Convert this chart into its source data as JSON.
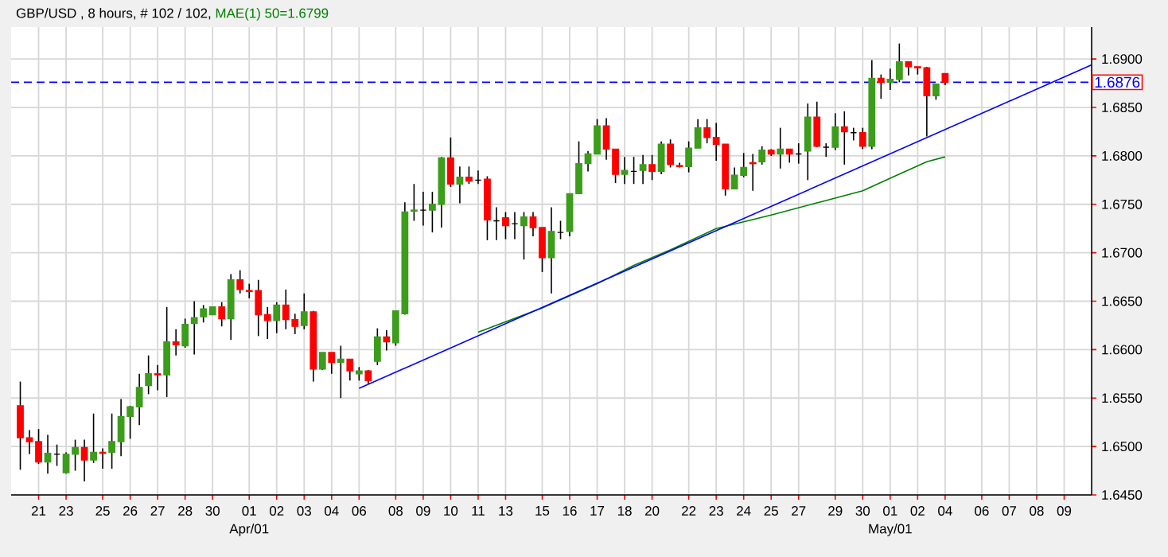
{
  "chart_data": {
    "type": "candlestick",
    "title": "GBP/USD , 8 hours, # 102 / 102,",
    "categories": [
      null,
      null,
      "21",
      null,
      null,
      "23",
      null,
      null,
      null,
      "25",
      null,
      null,
      "26",
      null,
      null,
      "27",
      null,
      null,
      "28",
      null,
      null,
      "30",
      null,
      null,
      null,
      "01",
      null,
      null,
      "02",
      null,
      null,
      "03",
      null,
      null,
      "04",
      null,
      null,
      "06",
      null,
      null,
      null,
      "08",
      null,
      null,
      "09",
      null,
      null,
      "10",
      null,
      null,
      "11",
      null,
      null,
      "13",
      null,
      null,
      null,
      "15",
      null,
      null,
      "16",
      null,
      null,
      "17",
      null,
      null,
      "18",
      null,
      null,
      "20",
      null,
      null,
      null,
      "22",
      null,
      null,
      "23",
      null,
      null,
      "24",
      null,
      null,
      "25",
      null,
      null,
      "27",
      null,
      null,
      null,
      "29",
      null,
      null,
      "30",
      null,
      null,
      "01",
      null,
      null,
      "02",
      null,
      null,
      "04",
      null,
      null,
      null,
      "06",
      null,
      null,
      "07",
      null,
      null,
      "08",
      null,
      null,
      "09",
      null,
      null,
      null
    ],
    "ohlc": [
      [
        1.6542,
        1.6567,
        1.6476,
        1.6509
      ],
      [
        1.6509,
        1.6517,
        1.6492,
        1.6505
      ],
      [
        1.6505,
        1.6518,
        1.6482,
        1.6484
      ],
      [
        1.6484,
        1.6512,
        1.6472,
        1.6493
      ],
      [
        1.6492,
        1.6502,
        1.648,
        1.6492
      ],
      [
        1.6473,
        1.6494,
        1.6472,
        1.6492
      ],
      [
        1.6492,
        1.6507,
        1.6475,
        1.6499
      ],
      [
        1.6499,
        1.6507,
        1.6464,
        1.6486
      ],
      [
        1.6486,
        1.6534,
        1.6483,
        1.6494
      ],
      [
        1.6494,
        1.6498,
        1.6477,
        1.6493
      ],
      [
        1.6494,
        1.6534,
        1.6477,
        1.6505
      ],
      [
        1.6505,
        1.6549,
        1.649,
        1.6531
      ],
      [
        1.6531,
        1.6542,
        1.6508,
        1.6541
      ],
      [
        1.6541,
        1.6575,
        1.6522,
        1.6561
      ],
      [
        1.6563,
        1.6594,
        1.6554,
        1.6575
      ],
      [
        1.6575,
        1.6584,
        1.6558,
        1.6574
      ],
      [
        1.6574,
        1.6644,
        1.6551,
        1.6608
      ],
      [
        1.6608,
        1.6621,
        1.6594,
        1.6605
      ],
      [
        1.6604,
        1.6632,
        1.6602,
        1.6626
      ],
      [
        1.6627,
        1.665,
        1.6595,
        1.6633
      ],
      [
        1.6634,
        1.6646,
        1.6628,
        1.6642
      ],
      [
        1.6636,
        1.6644,
        1.6636,
        1.6644
      ],
      [
        1.6644,
        1.6649,
        1.6624,
        1.6632
      ],
      [
        1.6632,
        1.6678,
        1.661,
        1.6672
      ],
      [
        1.6672,
        1.6682,
        1.6658,
        1.6662
      ],
      [
        1.6661,
        1.6668,
        1.6653,
        1.666
      ],
      [
        1.6661,
        1.6672,
        1.6614,
        1.6636
      ],
      [
        1.6636,
        1.6644,
        1.6611,
        1.663
      ],
      [
        1.663,
        1.6649,
        1.6617,
        1.6646
      ],
      [
        1.6646,
        1.6662,
        1.6621,
        1.6631
      ],
      [
        1.6631,
        1.6637,
        1.6616,
        1.6624
      ],
      [
        1.6625,
        1.6658,
        1.6621,
        1.6639
      ],
      [
        1.6639,
        1.664,
        1.6567,
        1.658
      ],
      [
        1.658,
        1.6597,
        1.6579,
        1.6597
      ],
      [
        1.6597,
        1.6597,
        1.6575,
        1.6587
      ],
      [
        1.6587,
        1.6604,
        1.655,
        1.659
      ],
      [
        1.659,
        1.659,
        1.6568,
        1.6578
      ],
      [
        1.6575,
        1.6582,
        1.6568,
        1.6578
      ],
      [
        1.6578,
        1.6579,
        1.6565,
        1.6568
      ],
      [
        1.6588,
        1.6622,
        1.6584,
        1.6613
      ],
      [
        1.6613,
        1.662,
        1.6599,
        1.6608
      ],
      [
        1.6607,
        1.664,
        1.6604,
        1.664
      ],
      [
        1.6637,
        1.6752,
        1.6636,
        1.6742
      ],
      [
        1.6743,
        1.6771,
        1.6733,
        1.6744
      ],
      [
        1.6744,
        1.6763,
        1.6728,
        1.6744
      ],
      [
        1.6744,
        1.6763,
        1.6721,
        1.675
      ],
      [
        1.675,
        1.6799,
        1.6726,
        1.6798
      ],
      [
        1.6798,
        1.6819,
        1.6768,
        1.6771
      ],
      [
        1.6771,
        1.6789,
        1.6751,
        1.6778
      ],
      [
        1.6778,
        1.6789,
        1.6771,
        1.6774
      ],
      [
        1.6775,
        1.6785,
        1.6771,
        1.6775
      ],
      [
        1.6776,
        1.6779,
        1.6713,
        1.6734
      ],
      [
        1.6733,
        1.6747,
        1.6713,
        1.6733
      ],
      [
        1.6736,
        1.6742,
        1.6714,
        1.6728
      ],
      [
        1.673,
        1.6742,
        1.6714,
        1.673
      ],
      [
        1.6728,
        1.6742,
        1.6693,
        1.6737
      ],
      [
        1.6737,
        1.6742,
        1.6717,
        1.6726
      ],
      [
        1.6726,
        1.6726,
        1.668,
        1.6695
      ],
      [
        1.6695,
        1.6747,
        1.6658,
        1.6722
      ],
      [
        1.6721,
        1.6733,
        1.6714,
        1.6721
      ],
      [
        1.6722,
        1.6761,
        1.6717,
        1.6761
      ],
      [
        1.6761,
        1.6815,
        1.6761,
        1.6792
      ],
      [
        1.6792,
        1.6805,
        1.6784,
        1.6802
      ],
      [
        1.6802,
        1.6838,
        1.6802,
        1.6831
      ],
      [
        1.6831,
        1.6839,
        1.6796,
        1.6807
      ],
      [
        1.6807,
        1.6807,
        1.6772,
        1.6781
      ],
      [
        1.6781,
        1.6799,
        1.6771,
        1.6785
      ],
      [
        1.6784,
        1.6799,
        1.6771,
        1.6784
      ],
      [
        1.6785,
        1.6801,
        1.6771,
        1.6791
      ],
      [
        1.6791,
        1.6801,
        1.6775,
        1.6784
      ],
      [
        1.6784,
        1.6815,
        1.6781,
        1.6812
      ],
      [
        1.6812,
        1.6817,
        1.6788,
        1.6791
      ],
      [
        1.679,
        1.6793,
        1.6788,
        1.6789
      ],
      [
        1.6789,
        1.6815,
        1.6783,
        1.6808
      ],
      [
        1.6808,
        1.6838,
        1.6808,
        1.6829
      ],
      [
        1.6829,
        1.6838,
        1.6813,
        1.6819
      ],
      [
        1.6819,
        1.6834,
        1.6795,
        1.6812
      ],
      [
        1.6812,
        1.6812,
        1.6759,
        1.6766
      ],
      [
        1.6766,
        1.6788,
        1.6766,
        1.678
      ],
      [
        1.678,
        1.6803,
        1.6778,
        1.6788
      ],
      [
        1.6793,
        1.6802,
        1.6764,
        1.6792
      ],
      [
        1.6794,
        1.681,
        1.6791,
        1.6806
      ],
      [
        1.6806,
        1.6807,
        1.68,
        1.6802
      ],
      [
        1.6802,
        1.6829,
        1.6787,
        1.6807
      ],
      [
        1.6807,
        1.6807,
        1.6793,
        1.6802
      ],
      [
        1.6802,
        1.6813,
        1.6792,
        1.6802
      ],
      [
        1.6805,
        1.6854,
        1.6775,
        1.684
      ],
      [
        1.684,
        1.6856,
        1.6809,
        1.681
      ],
      [
        1.6809,
        1.6813,
        1.6799,
        1.6809
      ],
      [
        1.6809,
        1.6844,
        1.6806,
        1.683
      ],
      [
        1.683,
        1.6846,
        1.6791,
        1.6825
      ],
      [
        1.6824,
        1.6829,
        1.6816,
        1.6824
      ],
      [
        1.6824,
        1.6829,
        1.6807,
        1.681
      ],
      [
        1.681,
        1.6899,
        1.6807,
        1.688
      ],
      [
        1.688,
        1.6884,
        1.6859,
        1.6876
      ],
      [
        1.6876,
        1.689,
        1.6868,
        1.6879
      ],
      [
        1.6879,
        1.6916,
        1.6876,
        1.6897
      ],
      [
        1.6897,
        1.6897,
        1.6883,
        1.6892
      ],
      [
        1.6892,
        1.6892,
        1.6884,
        1.6891
      ],
      [
        1.6891,
        1.6892,
        1.682,
        1.6862
      ],
      [
        1.6862,
        1.6874,
        1.6858,
        1.6874
      ],
      [
        1.6885,
        1.6885,
        1.6873,
        1.6876
      ],
      null,
      null,
      null,
      null,
      null,
      null,
      null,
      null,
      null,
      null,
      null,
      null,
      null,
      null,
      null,
      null
    ],
    "colors": [
      "#ff0000",
      "#ff0000",
      "#ff0000",
      "#3c9c1c",
      "#000000",
      "#3c9c1c",
      "#3c9c1c",
      "#ff0000",
      "#3c9c1c",
      "#ff0000",
      "#3c9c1c",
      "#3c9c1c",
      "#3c9c1c",
      "#3c9c1c",
      "#3c9c1c",
      "#ff0000",
      "#3c9c1c",
      "#ff0000",
      "#3c9c1c",
      "#3c9c1c",
      "#3c9c1c",
      "#3c9c1c",
      "#ff0000",
      "#3c9c1c",
      "#ff0000",
      "#ff0000",
      "#ff0000",
      "#ff0000",
      "#3c9c1c",
      "#ff0000",
      "#ff0000",
      "#3c9c1c",
      "#ff0000",
      "#3c9c1c",
      "#ff0000",
      "#3c9c1c",
      "#ff0000",
      "#3c9c1c",
      "#ff0000",
      "#3c9c1c",
      "#ff0000",
      "#3c9c1c",
      "#3c9c1c",
      "#3c9c1c",
      "#000000",
      "#3c9c1c",
      "#3c9c1c",
      "#ff0000",
      "#3c9c1c",
      "#ff0000",
      "#000000",
      "#ff0000",
      "#000000",
      "#ff0000",
      "#000000",
      "#3c9c1c",
      "#ff0000",
      "#ff0000",
      "#3c9c1c",
      "#000000",
      "#3c9c1c",
      "#3c9c1c",
      "#3c9c1c",
      "#3c9c1c",
      "#ff0000",
      "#ff0000",
      "#3c9c1c",
      "#000000",
      "#3c9c1c",
      "#ff0000",
      "#3c9c1c",
      "#ff0000",
      "#ff0000",
      "#3c9c1c",
      "#3c9c1c",
      "#ff0000",
      "#ff0000",
      "#ff0000",
      "#3c9c1c",
      "#3c9c1c",
      "#ff0000",
      "#3c9c1c",
      "#ff0000",
      "#3c9c1c",
      "#ff0000",
      "#000000",
      "#3c9c1c",
      "#ff0000",
      "#000000",
      "#3c9c1c",
      "#ff0000",
      "#000000",
      "#ff0000",
      "#3c9c1c",
      "#ff0000",
      "#3c9c1c",
      "#3c9c1c",
      "#ff0000",
      "#ff0000",
      "#ff0000",
      "#3c9c1c",
      "#ff0000",
      null,
      null,
      null,
      null,
      null,
      null,
      null,
      null,
      null,
      null,
      null,
      null,
      null,
      null,
      null,
      null
    ],
    "series": [
      {
        "type": "line",
        "name": "MAE(1) 50=1.6799",
        "color": "#008000",
        "values": [
          null,
          null,
          null,
          null,
          null,
          null,
          null,
          null,
          null,
          null,
          null,
          null,
          null,
          null,
          null,
          null,
          null,
          null,
          null,
          null,
          null,
          null,
          null,
          null,
          null,
          null,
          null,
          null,
          null,
          null,
          null,
          null,
          null,
          null,
          null,
          null,
          null,
          null,
          null,
          null,
          null,
          null,
          null,
          null,
          null,
          null,
          null,
          null,
          null,
          null,
          1.6618,
          null,
          null,
          null,
          null,
          null,
          null,
          1.6643,
          null,
          null,
          null,
          null,
          null,
          1.6668,
          null,
          null,
          null,
          1.6687,
          null,
          null,
          null,
          1.6703,
          null,
          null,
          null,
          null,
          1.6725,
          null,
          null,
          null,
          null,
          null,
          1.6739,
          null,
          null,
          null,
          null,
          null,
          1.6754,
          null,
          null,
          null,
          1.6764,
          null,
          null,
          1.6777,
          null,
          null,
          null,
          1.6794,
          null,
          1.6799,
          null,
          null,
          null,
          null,
          null,
          null,
          null,
          null,
          null,
          null,
          null,
          null,
          null,
          null,
          null,
          null
        ]
      },
      {
        "type": "line",
        "color": "#0000ff",
        "values": [
          null,
          null,
          null,
          null,
          null,
          null,
          null,
          null,
          null,
          null,
          null,
          null,
          null,
          null,
          null,
          null,
          null,
          null,
          null,
          null,
          null,
          null,
          null,
          null,
          null,
          null,
          null,
          null,
          null,
          null,
          null,
          null,
          null,
          null,
          null,
          null,
          null,
          1.656,
          null,
          null,
          null,
          null,
          null,
          null,
          null,
          null,
          null,
          null,
          null,
          null,
          null,
          null,
          null,
          null,
          null,
          null,
          null,
          null,
          null,
          null,
          null,
          null,
          null,
          null,
          null,
          null,
          null,
          null,
          null,
          null,
          null,
          null,
          null,
          null,
          null,
          null,
          null,
          null,
          null,
          null,
          null,
          null,
          null,
          null,
          null,
          null,
          null,
          null,
          null,
          null,
          null,
          null,
          null,
          null,
          null,
          null,
          null,
          null,
          null,
          null,
          null,
          null,
          null,
          null,
          null,
          null,
          null,
          null,
          null,
          null,
          null,
          null,
          null,
          null,
          null,
          null,
          null,
          1.6894
        ]
      }
    ],
    "ylim": [
      1.645,
      1.6933
    ],
    "yticks": [
      {
        "value": 1.645,
        "label": "1.6450"
      },
      {
        "value": 1.65,
        "label": "1.6500"
      },
      {
        "value": 1.655,
        "label": "1.6550"
      },
      {
        "value": 1.66,
        "label": "1.6600"
      },
      {
        "value": 1.665,
        "label": "1.6650"
      },
      {
        "value": 1.67,
        "label": "1.6700"
      },
      {
        "value": 1.675,
        "label": "1.6750"
      },
      {
        "value": 1.68,
        "label": "1.6800"
      },
      {
        "value": 1.685,
        "label": "1.6850"
      },
      {
        "value": 1.69,
        "label": "1.6900"
      }
    ],
    "ref_lines": [
      {
        "axis": "y",
        "value": 1.6876,
        "label": "1.6876",
        "color": "#0000ff",
        "line_style": "dashed"
      }
    ],
    "annotations": [
      "Apr/01",
      "May/01"
    ],
    "grid": true
  }
}
